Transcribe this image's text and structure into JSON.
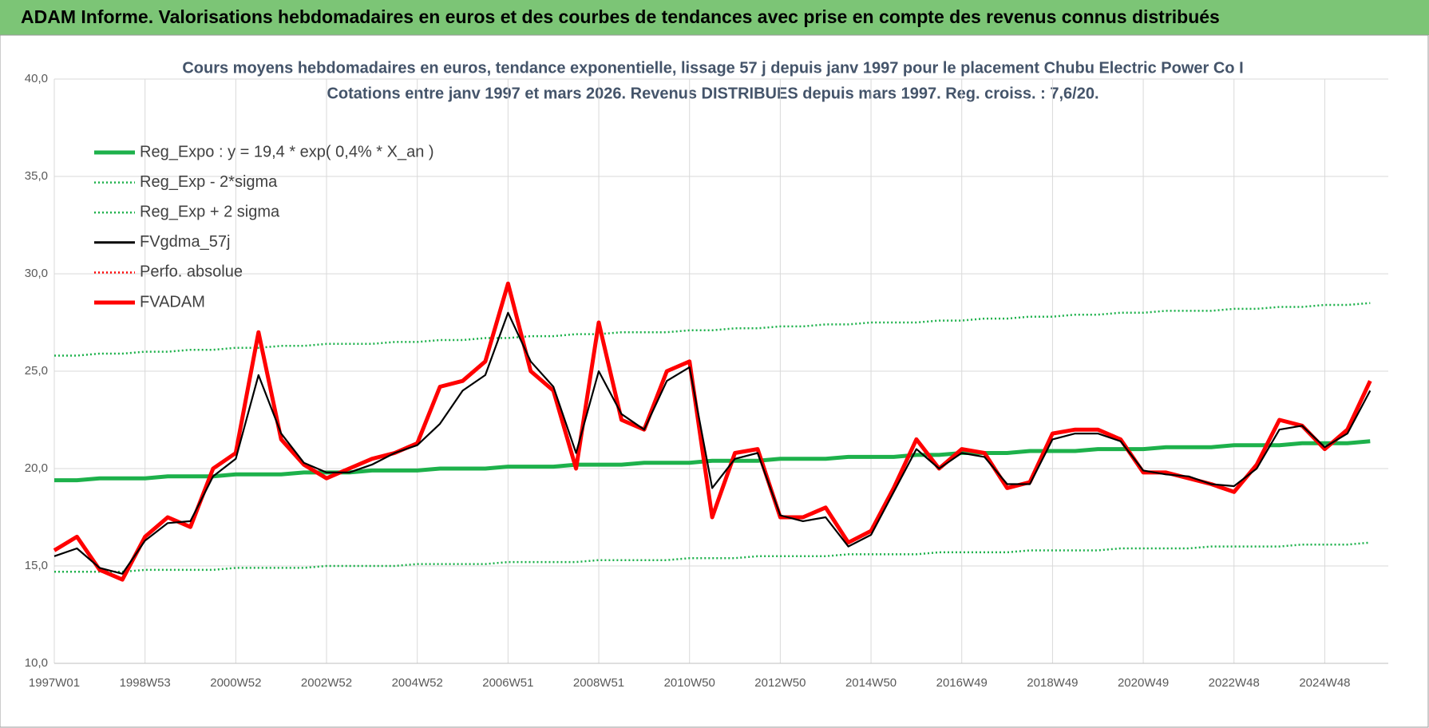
{
  "header": "ADAM Informe. Valorisations hebdomadaires en euros et des courbes de tendances avec prise en compte des revenus connus distribués",
  "chart_data": {
    "type": "line",
    "title": "Cours moyens hebdomadaires en euros, tendance exponentielle, lissage 57 j depuis janv 1997 pour le placement Chubu Electric Power Co I",
    "subtitle": "Cotations entre janv 1997 et mars 2026. Revenus DISTRIBUES depuis mars 1997. Reg. croiss. : 7,6/20.",
    "categories": [
      "1997W01",
      null,
      null,
      null,
      "1998W53",
      null,
      null,
      null,
      "2000W52",
      null,
      null,
      null,
      "2002W52",
      null,
      null,
      null,
      "2004W52",
      null,
      null,
      null,
      "2006W51",
      null,
      null,
      null,
      "2008W51",
      null,
      null,
      null,
      "2010W50",
      null,
      null,
      null,
      "2012W50",
      null,
      null,
      null,
      "2014W50",
      null,
      null,
      null,
      "2016W49",
      null,
      null,
      null,
      "2018W49",
      null,
      null,
      null,
      "2020W49",
      null,
      null,
      null,
      "2022W48",
      null,
      null,
      null,
      "2024W48",
      null,
      null
    ],
    "ylim": [
      10,
      40
    ],
    "yticks": [
      {
        "value": 10,
        "label": "10,0"
      },
      {
        "value": 15,
        "label": "15,0"
      },
      {
        "value": 20,
        "label": "20,0"
      },
      {
        "value": 25,
        "label": "25,0"
      },
      {
        "value": 30,
        "label": "30,0"
      },
      {
        "value": 35,
        "label": "35,0"
      },
      {
        "value": 40,
        "label": "40,0"
      }
    ],
    "grid": true,
    "legend": "top-left",
    "series": [
      {
        "name": "Reg_Expo : y = 19,4 * exp( 0,4% *  X_an )",
        "color": "#1db14b",
        "style": "thick",
        "values": [
          19.4,
          19.4,
          19.5,
          19.5,
          19.5,
          19.6,
          19.6,
          19.6,
          19.7,
          19.7,
          19.7,
          19.8,
          19.8,
          19.8,
          19.9,
          19.9,
          19.9,
          20.0,
          20.0,
          20.0,
          20.1,
          20.1,
          20.1,
          20.2,
          20.2,
          20.2,
          20.3,
          20.3,
          20.3,
          20.4,
          20.4,
          20.4,
          20.5,
          20.5,
          20.5,
          20.6,
          20.6,
          20.6,
          20.7,
          20.7,
          20.8,
          20.8,
          20.8,
          20.9,
          20.9,
          20.9,
          21.0,
          21.0,
          21.0,
          21.1,
          21.1,
          21.1,
          21.2,
          21.2,
          21.2,
          21.3,
          21.3,
          21.3,
          21.4
        ]
      },
      {
        "name": "Reg_Exp - 2*sigma",
        "color": "#1db14b",
        "style": "dotted",
        "values": [
          14.7,
          14.7,
          14.7,
          14.7,
          14.8,
          14.8,
          14.8,
          14.8,
          14.9,
          14.9,
          14.9,
          14.9,
          15.0,
          15.0,
          15.0,
          15.0,
          15.1,
          15.1,
          15.1,
          15.1,
          15.2,
          15.2,
          15.2,
          15.2,
          15.3,
          15.3,
          15.3,
          15.3,
          15.4,
          15.4,
          15.4,
          15.5,
          15.5,
          15.5,
          15.5,
          15.6,
          15.6,
          15.6,
          15.6,
          15.7,
          15.7,
          15.7,
          15.7,
          15.8,
          15.8,
          15.8,
          15.8,
          15.9,
          15.9,
          15.9,
          15.9,
          16.0,
          16.0,
          16.0,
          16.0,
          16.1,
          16.1,
          16.1,
          16.2
        ]
      },
      {
        "name": "Reg_Exp + 2 sigma",
        "color": "#1db14b",
        "style": "dotted",
        "values": [
          25.8,
          25.8,
          25.9,
          25.9,
          26.0,
          26.0,
          26.1,
          26.1,
          26.2,
          26.2,
          26.3,
          26.3,
          26.4,
          26.4,
          26.4,
          26.5,
          26.5,
          26.6,
          26.6,
          26.7,
          26.7,
          26.8,
          26.8,
          26.9,
          26.9,
          27.0,
          27.0,
          27.0,
          27.1,
          27.1,
          27.2,
          27.2,
          27.3,
          27.3,
          27.4,
          27.4,
          27.5,
          27.5,
          27.5,
          27.6,
          27.6,
          27.7,
          27.7,
          27.8,
          27.8,
          27.9,
          27.9,
          28.0,
          28.0,
          28.1,
          28.1,
          28.1,
          28.2,
          28.2,
          28.3,
          28.3,
          28.4,
          28.4,
          28.5
        ]
      },
      {
        "name": "FVgdma_57j",
        "color": "#000000",
        "style": "thin",
        "values": [
          15.5,
          15.9,
          14.9,
          14.6,
          16.3,
          17.2,
          17.3,
          19.6,
          20.5,
          24.8,
          21.8,
          20.3,
          19.8,
          19.8,
          20.2,
          20.8,
          21.2,
          22.3,
          24.0,
          24.8,
          28.0,
          25.5,
          24.2,
          20.8,
          25.0,
          22.8,
          22.0,
          24.5,
          25.2,
          19.0,
          20.5,
          20.8,
          17.6,
          17.3,
          17.5,
          16.0,
          16.6,
          18.8,
          21.0,
          20.0,
          20.8,
          20.6,
          19.2,
          19.2,
          21.5,
          21.8,
          21.8,
          21.4,
          19.9,
          19.7,
          19.6,
          19.2,
          19.1,
          20.0,
          22.0,
          22.2,
          21.1,
          21.8,
          24.0
        ]
      },
      {
        "name": "Perfo. absolue",
        "color": "#ff0000",
        "style": "dotted",
        "values": [
          null,
          null,
          null,
          null,
          null,
          null,
          null,
          null,
          null,
          null,
          null,
          null,
          null,
          null,
          null,
          null,
          null,
          null,
          null,
          null,
          null,
          null,
          null,
          null,
          null,
          null,
          null,
          null,
          null,
          null,
          null,
          null,
          null,
          null,
          null,
          null,
          null,
          null,
          null,
          null,
          null,
          null,
          null,
          null,
          null,
          null,
          null,
          null,
          null,
          null,
          null,
          null,
          null,
          null,
          null,
          null,
          null,
          null,
          null
        ]
      },
      {
        "name": "FVADAM",
        "color": "#ff0000",
        "style": "thick",
        "values": [
          15.8,
          16.5,
          14.8,
          14.3,
          16.5,
          17.5,
          17.0,
          20.0,
          20.8,
          27.0,
          21.5,
          20.2,
          19.5,
          20.0,
          20.5,
          20.8,
          21.3,
          24.2,
          24.5,
          25.5,
          29.5,
          25.0,
          24.0,
          20.0,
          27.5,
          22.5,
          22.0,
          25.0,
          25.5,
          17.5,
          20.8,
          21.0,
          17.5,
          17.5,
          18.0,
          16.2,
          16.8,
          19.0,
          21.5,
          20.0,
          21.0,
          20.8,
          19.0,
          19.3,
          21.8,
          22.0,
          22.0,
          21.5,
          19.8,
          19.8,
          19.5,
          19.2,
          18.8,
          20.2,
          22.5,
          22.2,
          21.0,
          22.0,
          24.5
        ]
      }
    ]
  }
}
